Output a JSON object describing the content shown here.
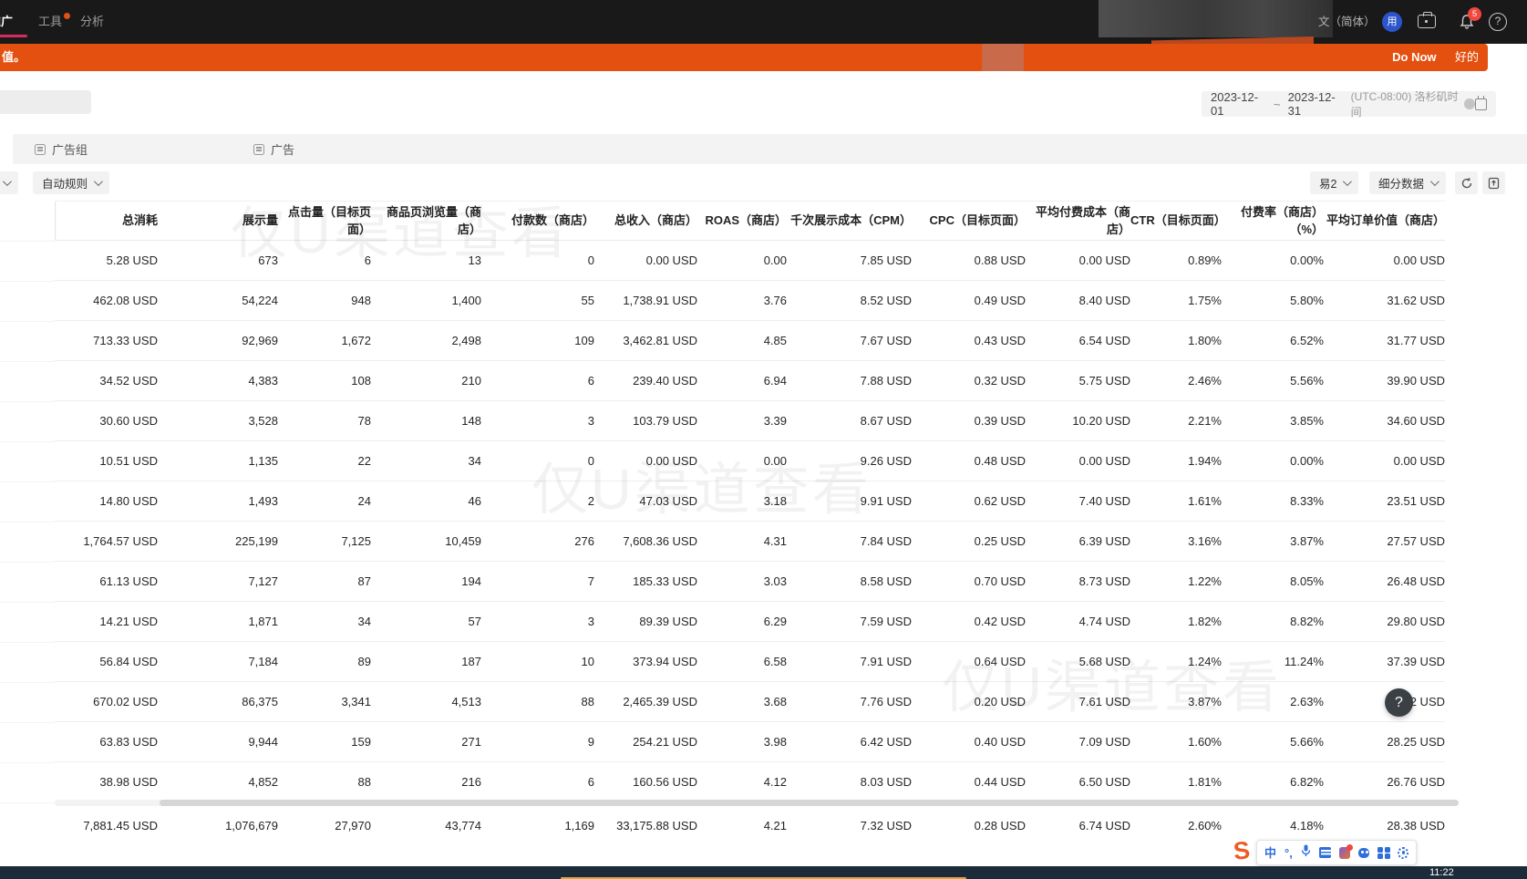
{
  "colors": {
    "nav-bg": "#191919",
    "accent-orange": "#e3500f",
    "accent-pink": "#d92c5c",
    "avatar-blue": "#2c55cc",
    "badge-red": "#f2463e",
    "taskbar-navy": "#1c2b39",
    "sogou-orange": "#ef5b22",
    "ime-blue": "#2e6fdb"
  },
  "nav": {
    "items": [
      {
        "label": "推广"
      },
      {
        "label": "工具"
      },
      {
        "label": "分析"
      }
    ],
    "language": "文（简体）",
    "avatar_text": "用",
    "bell_badge": "5",
    "help_label": "?"
  },
  "banner": {
    "left_text": "值。",
    "do_now": "Do Now",
    "ok": "好的"
  },
  "toolbar": {
    "date_start": "2023-12-01",
    "date_separator": "~",
    "date_end": "2023-12-31",
    "timezone": "(UTC-08:00) 洛杉矶时间"
  },
  "tabs": [
    {
      "label": "广告组"
    },
    {
      "label": "广告"
    }
  ],
  "filters": {
    "auto_rule": "自动规则",
    "preset": "易2",
    "breakdown": "细分数据"
  },
  "watermark": "仅U渠道查看",
  "table": {
    "columns": [
      "总消耗",
      "展示量",
      "点击量（目标页面）",
      "商品页浏览量（商店）",
      "付款数（商店）",
      "总收入（商店）",
      "ROAS（商店）",
      "千次展示成本（CPM）",
      "CPC（目标页面）",
      "平均付费成本（商店）",
      "CTR（目标页面）",
      "付费率（商店）（%）",
      "平均订单价值（商店）"
    ],
    "rows": [
      [
        "5.28 USD",
        "673",
        "6",
        "13",
        "0",
        "0.00 USD",
        "0.00",
        "7.85 USD",
        "0.88 USD",
        "0.00 USD",
        "0.89%",
        "0.00%",
        "0.00 USD"
      ],
      [
        "462.08 USD",
        "54,224",
        "948",
        "1,400",
        "55",
        "1,738.91 USD",
        "3.76",
        "8.52 USD",
        "0.49 USD",
        "8.40 USD",
        "1.75%",
        "5.80%",
        "31.62 USD"
      ],
      [
        "713.33 USD",
        "92,969",
        "1,672",
        "2,498",
        "109",
        "3,462.81 USD",
        "4.85",
        "7.67 USD",
        "0.43 USD",
        "6.54 USD",
        "1.80%",
        "6.52%",
        "31.77 USD"
      ],
      [
        "34.52 USD",
        "4,383",
        "108",
        "210",
        "6",
        "239.40 USD",
        "6.94",
        "7.88 USD",
        "0.32 USD",
        "5.75 USD",
        "2.46%",
        "5.56%",
        "39.90 USD"
      ],
      [
        "30.60 USD",
        "3,528",
        "78",
        "148",
        "3",
        "103.79 USD",
        "3.39",
        "8.67 USD",
        "0.39 USD",
        "10.20 USD",
        "2.21%",
        "3.85%",
        "34.60 USD"
      ],
      [
        "10.51 USD",
        "1,135",
        "22",
        "34",
        "0",
        "0.00 USD",
        "0.00",
        "9.26 USD",
        "0.48 USD",
        "0.00 USD",
        "1.94%",
        "0.00%",
        "0.00 USD"
      ],
      [
        "14.80 USD",
        "1,493",
        "24",
        "46",
        "2",
        "47.03 USD",
        "3.18",
        "9.91 USD",
        "0.62 USD",
        "7.40 USD",
        "1.61%",
        "8.33%",
        "23.51 USD"
      ],
      [
        "1,764.57 USD",
        "225,199",
        "7,125",
        "10,459",
        "276",
        "7,608.36 USD",
        "4.31",
        "7.84 USD",
        "0.25 USD",
        "6.39 USD",
        "3.16%",
        "3.87%",
        "27.57 USD"
      ],
      [
        "61.13 USD",
        "7,127",
        "87",
        "194",
        "7",
        "185.33 USD",
        "3.03",
        "8.58 USD",
        "0.70 USD",
        "8.73 USD",
        "1.22%",
        "8.05%",
        "26.48 USD"
      ],
      [
        "14.21 USD",
        "1,871",
        "34",
        "57",
        "3",
        "89.39 USD",
        "6.29",
        "7.59 USD",
        "0.42 USD",
        "4.74 USD",
        "1.82%",
        "8.82%",
        "29.80 USD"
      ],
      [
        "56.84 USD",
        "7,184",
        "89",
        "187",
        "10",
        "373.94 USD",
        "6.58",
        "7.91 USD",
        "0.64 USD",
        "5.68 USD",
        "1.24%",
        "11.24%",
        "37.39 USD"
      ],
      [
        "670.02 USD",
        "86,375",
        "3,341",
        "4,513",
        "88",
        "2,465.39 USD",
        "3.68",
        "7.76 USD",
        "0.20 USD",
        "7.61 USD",
        "3.87%",
        "2.63%",
        "28.02 USD"
      ],
      [
        "63.83 USD",
        "9,944",
        "159",
        "271",
        "9",
        "254.21 USD",
        "3.98",
        "6.42 USD",
        "0.40 USD",
        "7.09 USD",
        "1.60%",
        "5.66%",
        "28.25 USD"
      ],
      [
        "38.98 USD",
        "4,852",
        "88",
        "216",
        "6",
        "160.56 USD",
        "4.12",
        "8.03 USD",
        "0.44 USD",
        "6.50 USD",
        "1.81%",
        "6.82%",
        "26.76 USD"
      ]
    ],
    "total": [
      "7,881.45 USD",
      "1,076,679",
      "27,970",
      "43,774",
      "1,169",
      "33,175.88 USD",
      "4.21",
      "7.32 USD",
      "0.28 USD",
      "6.74 USD",
      "2.60%",
      "4.18%",
      "28.38 USD"
    ]
  },
  "help_button": "?",
  "ime_bar": {
    "logo_text": "S",
    "mode_label": "中",
    "punct_label": "°,"
  },
  "taskbar": {
    "time": "11:22"
  }
}
